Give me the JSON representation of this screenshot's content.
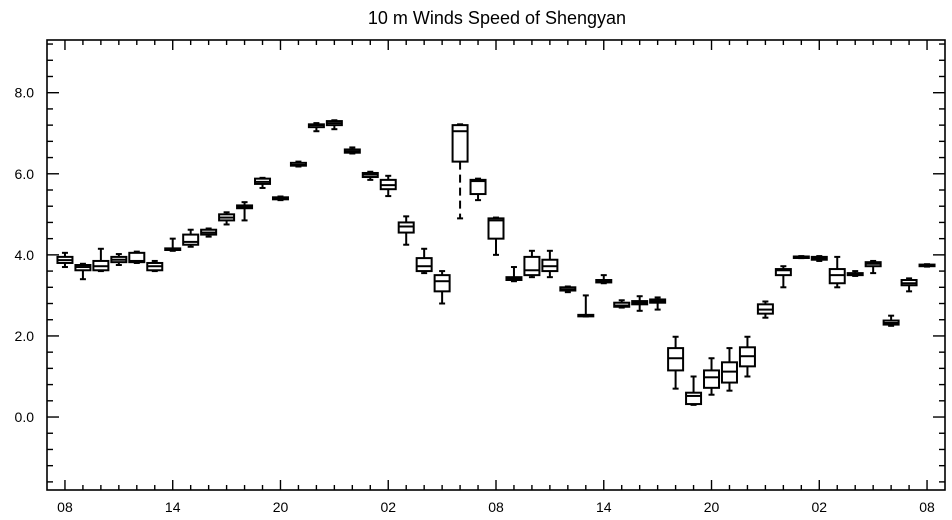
{
  "chart_data": {
    "type": "boxplot",
    "title": "10 m Winds Speed of Shengyan",
    "xlabel": "",
    "ylabel": "",
    "ylim": [
      -1.8,
      9.3
    ],
    "y_ticks": [
      0.0,
      2.0,
      4.0,
      6.0,
      8.0
    ],
    "y_tick_labels": [
      "0.0",
      "2.0",
      "4.0",
      "6.0",
      "8.0"
    ],
    "x_ticks": [
      0,
      6,
      12,
      18,
      24,
      30,
      36,
      42,
      48
    ],
    "x_tick_labels": [
      "08",
      "14",
      "20",
      "02",
      "08",
      "14",
      "20",
      "02",
      "08"
    ],
    "xlim": [
      -1,
      49
    ],
    "series": [
      {
        "boxes": [
          {
            "x": 0,
            "min": 3.7,
            "q1": 3.8,
            "median": 3.87,
            "q3": 3.95,
            "max": 4.05
          },
          {
            "x": 1,
            "min": 3.4,
            "q1": 3.62,
            "median": 3.7,
            "q3": 3.75,
            "max": 3.78
          },
          {
            "x": 2,
            "min": 3.6,
            "q1": 3.62,
            "median": 3.72,
            "q3": 3.85,
            "max": 4.15
          },
          {
            "x": 3,
            "min": 3.75,
            "q1": 3.82,
            "median": 3.88,
            "q3": 3.95,
            "max": 4.02
          },
          {
            "x": 4,
            "min": 3.8,
            "q1": 3.82,
            "median": 3.85,
            "q3": 4.05,
            "max": 4.08
          },
          {
            "x": 5,
            "min": 3.6,
            "q1": 3.62,
            "median": 3.72,
            "q3": 3.8,
            "max": 3.85
          },
          {
            "x": 6,
            "min": 4.1,
            "q1": 4.12,
            "median": 4.14,
            "q3": 4.16,
            "max": 4.4
          },
          {
            "x": 7,
            "min": 4.2,
            "q1": 4.25,
            "median": 4.32,
            "q3": 4.5,
            "max": 4.62
          },
          {
            "x": 8,
            "min": 4.45,
            "q1": 4.5,
            "median": 4.55,
            "q3": 4.62,
            "max": 4.65
          },
          {
            "x": 9,
            "min": 4.75,
            "q1": 4.85,
            "median": 4.92,
            "q3": 5.0,
            "max": 5.05
          },
          {
            "x": 10,
            "min": 4.85,
            "q1": 5.15,
            "median": 5.18,
            "q3": 5.22,
            "max": 5.3
          },
          {
            "x": 11,
            "min": 5.65,
            "q1": 5.75,
            "median": 5.8,
            "q3": 5.88,
            "max": 5.9
          },
          {
            "x": 12,
            "min": 5.35,
            "q1": 5.37,
            "median": 5.4,
            "q3": 5.42,
            "max": 5.44
          },
          {
            "x": 13,
            "min": 6.18,
            "q1": 6.2,
            "median": 6.22,
            "q3": 6.27,
            "max": 6.3
          },
          {
            "x": 14,
            "min": 7.05,
            "q1": 7.15,
            "median": 7.2,
            "q3": 7.22,
            "max": 7.25
          },
          {
            "x": 15,
            "min": 7.1,
            "q1": 7.2,
            "median": 7.25,
            "q3": 7.3,
            "max": 7.32
          },
          {
            "x": 16,
            "min": 6.5,
            "q1": 6.52,
            "median": 6.55,
            "q3": 6.6,
            "max": 6.65
          },
          {
            "x": 17,
            "min": 5.85,
            "q1": 5.92,
            "median": 5.98,
            "q3": 6.02,
            "max": 6.05
          },
          {
            "x": 18,
            "min": 5.45,
            "q1": 5.62,
            "median": 5.72,
            "q3": 5.85,
            "max": 5.95
          },
          {
            "x": 19,
            "min": 4.25,
            "q1": 4.55,
            "median": 4.7,
            "q3": 4.8,
            "max": 4.95
          },
          {
            "x": 20,
            "min": 3.55,
            "q1": 3.6,
            "median": 3.72,
            "q3": 3.92,
            "max": 4.15
          },
          {
            "x": 21,
            "min": 2.8,
            "q1": 3.1,
            "median": 3.35,
            "q3": 3.5,
            "max": 3.6
          },
          {
            "x": 22,
            "min": 4.9,
            "q1": 6.3,
            "median": 7.05,
            "q3": 7.2,
            "max": 7.22
          },
          {
            "x": 23,
            "min": 5.35,
            "q1": 5.5,
            "median": 5.82,
            "q3": 5.85,
            "max": 5.88
          },
          {
            "x": 24,
            "min": 4.0,
            "q1": 4.4,
            "median": 4.85,
            "q3": 4.9,
            "max": 4.92
          },
          {
            "x": 25,
            "min": 3.35,
            "q1": 3.38,
            "median": 3.42,
            "q3": 3.45,
            "max": 3.7
          },
          {
            "x": 26,
            "min": 3.45,
            "q1": 3.5,
            "median": 3.62,
            "q3": 3.95,
            "max": 4.1
          },
          {
            "x": 27,
            "min": 3.45,
            "q1": 3.6,
            "median": 3.72,
            "q3": 3.88,
            "max": 4.1
          },
          {
            "x": 28,
            "min": 3.08,
            "q1": 3.12,
            "median": 3.15,
            "q3": 3.2,
            "max": 3.22
          },
          {
            "x": 29,
            "min": 2.48,
            "q1": 2.49,
            "median": 2.5,
            "q3": 2.52,
            "max": 3.0
          },
          {
            "x": 30,
            "min": 3.3,
            "q1": 3.32,
            "median": 3.35,
            "q3": 3.38,
            "max": 3.5
          },
          {
            "x": 31,
            "min": 2.7,
            "q1": 2.72,
            "median": 2.75,
            "q3": 2.82,
            "max": 2.88
          },
          {
            "x": 32,
            "min": 2.62,
            "q1": 2.78,
            "median": 2.82,
            "q3": 2.86,
            "max": 2.98
          },
          {
            "x": 33,
            "min": 2.65,
            "q1": 2.82,
            "median": 2.86,
            "q3": 2.9,
            "max": 2.95
          },
          {
            "x": 34,
            "min": 0.7,
            "q1": 1.15,
            "median": 1.45,
            "q3": 1.7,
            "max": 1.98
          },
          {
            "x": 35,
            "min": 0.3,
            "q1": 0.32,
            "median": 0.52,
            "q3": 0.6,
            "max": 1.0
          },
          {
            "x": 36,
            "min": 0.55,
            "q1": 0.72,
            "median": 0.98,
            "q3": 1.15,
            "max": 1.45
          },
          {
            "x": 37,
            "min": 0.65,
            "q1": 0.85,
            "median": 1.12,
            "q3": 1.35,
            "max": 1.7
          },
          {
            "x": 38,
            "min": 1.0,
            "q1": 1.25,
            "median": 1.5,
            "q3": 1.72,
            "max": 1.98
          },
          {
            "x": 39,
            "min": 2.45,
            "q1": 2.55,
            "median": 2.65,
            "q3": 2.78,
            "max": 2.85
          },
          {
            "x": 40,
            "min": 3.2,
            "q1": 3.5,
            "median": 3.62,
            "q3": 3.65,
            "max": 3.72
          },
          {
            "x": 41,
            "min": 3.92,
            "q1": 3.93,
            "median": 3.95,
            "q3": 3.96,
            "max": 3.97
          },
          {
            "x": 42,
            "min": 3.85,
            "q1": 3.88,
            "median": 3.92,
            "q3": 3.95,
            "max": 3.97
          },
          {
            "x": 43,
            "min": 3.2,
            "q1": 3.3,
            "median": 3.5,
            "q3": 3.65,
            "max": 3.95
          },
          {
            "x": 44,
            "min": 3.48,
            "q1": 3.5,
            "median": 3.52,
            "q3": 3.55,
            "max": 3.6
          },
          {
            "x": 45,
            "min": 3.55,
            "q1": 3.72,
            "median": 3.78,
            "q3": 3.82,
            "max": 3.85
          },
          {
            "x": 46,
            "min": 2.25,
            "q1": 2.28,
            "median": 2.32,
            "q3": 2.38,
            "max": 2.5
          },
          {
            "x": 47,
            "min": 3.1,
            "q1": 3.25,
            "median": 3.3,
            "q3": 3.38,
            "max": 3.42
          },
          {
            "x": 48,
            "min": 3.71,
            "q1": 3.72,
            "median": 3.74,
            "q3": 3.76,
            "max": 3.77
          }
        ]
      }
    ],
    "grid": false,
    "legend": "none",
    "colors": {
      "stroke": "#000000",
      "fill": "#ffffff"
    }
  }
}
